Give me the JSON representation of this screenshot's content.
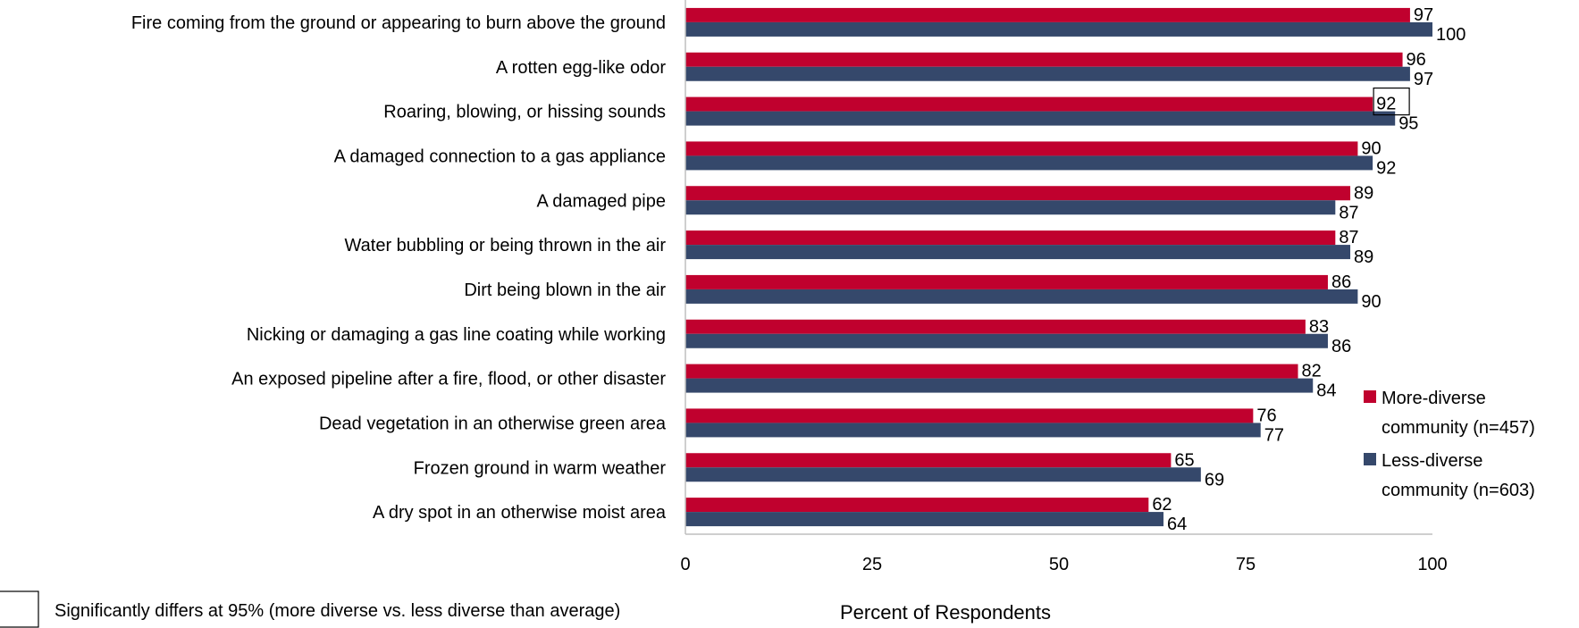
{
  "chart_data": {
    "type": "bar",
    "orientation": "horizontal",
    "categories": [
      "Fire coming from the ground or appearing to burn above the ground",
      "A rotten egg-like odor",
      "Roaring, blowing, or hissing sounds",
      "A damaged connection to a gas appliance",
      "A damaged pipe",
      "Water bubbling or being thrown in the air",
      "Dirt being blown in the air",
      "Nicking or damaging a gas line coating while working",
      "An exposed pipeline after a fire, flood, or other disaster",
      "Dead vegetation in an otherwise green area",
      "Frozen ground in warm weather",
      "A dry spot in an otherwise moist area"
    ],
    "series": [
      {
        "name": "More-diverse community (n=457)",
        "color": "#c0012e",
        "values": [
          97,
          96,
          92,
          90,
          89,
          87,
          86,
          83,
          82,
          76,
          65,
          62
        ]
      },
      {
        "name": "Less-diverse community (n=603)",
        "color": "#35486b",
        "values": [
          100,
          97,
          95,
          92,
          87,
          89,
          90,
          86,
          84,
          77,
          69,
          64
        ]
      }
    ],
    "significant": [
      {
        "category_index": 2,
        "series_index": 0
      }
    ],
    "xlabel": "Percent of Respondents",
    "xlim": [
      0,
      100
    ],
    "xticks": [
      0,
      25,
      50,
      75,
      100
    ],
    "grid": false,
    "legend_position": "right",
    "legend": [
      [
        "More-diverse",
        "community (n=457)"
      ],
      [
        "Less-diverse",
        "community (n=603)"
      ]
    ]
  },
  "footnote": {
    "text": "Significantly differs at 95% (more diverse vs. less diverse than average)"
  }
}
